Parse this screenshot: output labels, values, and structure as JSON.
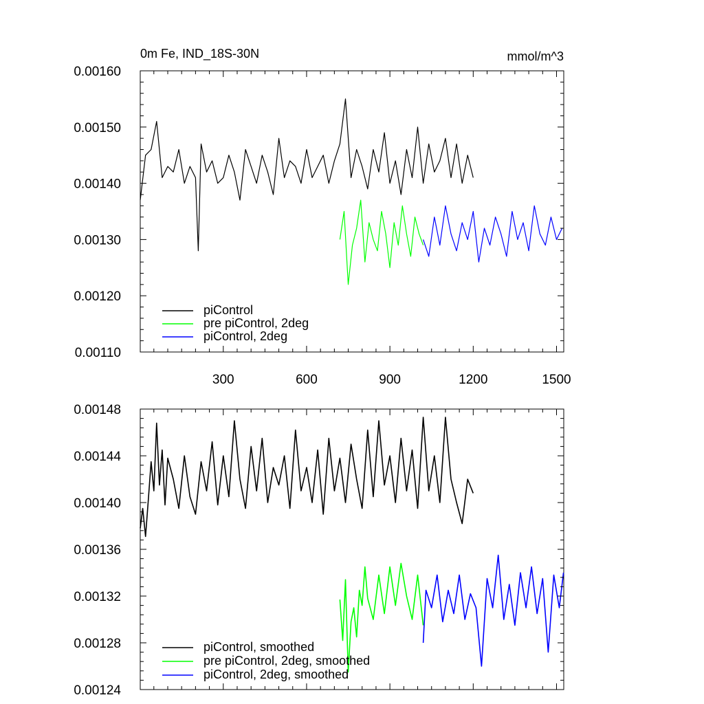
{
  "chart_data": [
    {
      "type": "line",
      "title": "0m Fe, IND_18S-30N",
      "units": "mmol/m^3",
      "xlim": [
        1,
        1526
      ],
      "ylim": [
        0.0011,
        0.0016
      ],
      "xticks": [
        300,
        600,
        900,
        1200,
        1500
      ],
      "xtick_labels": [
        "300",
        "600",
        "900",
        "1200",
        "1500"
      ],
      "yticks": [
        0.0011,
        0.0012,
        0.0013,
        0.0014,
        0.0015,
        0.0016
      ],
      "ytick_labels": [
        "0.00110",
        "0.00120",
        "0.00130",
        "0.00140",
        "0.00150",
        "0.00160"
      ],
      "legend_position": "bottom-left",
      "grid": false,
      "series": [
        {
          "name": "piControl",
          "color": "#000000",
          "x_range": [
            1,
            1200
          ],
          "x": [
            1,
            20,
            40,
            60,
            80,
            100,
            120,
            140,
            160,
            180,
            200,
            210,
            220,
            240,
            260,
            280,
            300,
            320,
            340,
            360,
            380,
            400,
            420,
            440,
            460,
            480,
            500,
            520,
            540,
            560,
            580,
            600,
            620,
            640,
            660,
            680,
            700,
            720,
            740,
            760,
            780,
            800,
            820,
            840,
            860,
            880,
            900,
            920,
            940,
            960,
            980,
            1000,
            1020,
            1040,
            1060,
            1080,
            1100,
            1120,
            1140,
            1160,
            1180,
            1200
          ],
          "values": [
            0.00137,
            0.00145,
            0.00146,
            0.00151,
            0.00141,
            0.00143,
            0.00142,
            0.00146,
            0.0014,
            0.00143,
            0.00141,
            0.00128,
            0.00147,
            0.00142,
            0.00144,
            0.0014,
            0.00141,
            0.00145,
            0.00142,
            0.00137,
            0.00146,
            0.00143,
            0.0014,
            0.00145,
            0.00142,
            0.00138,
            0.00148,
            0.00141,
            0.00144,
            0.00143,
            0.0014,
            0.00146,
            0.00141,
            0.00143,
            0.00145,
            0.0014,
            0.00144,
            0.00147,
            0.00155,
            0.00141,
            0.00146,
            0.00143,
            0.00139,
            0.00146,
            0.00142,
            0.00149,
            0.0014,
            0.00144,
            0.00138,
            0.00146,
            0.00141,
            0.0015,
            0.0014,
            0.00147,
            0.00142,
            0.00144,
            0.00148,
            0.00141,
            0.00147,
            0.0014,
            0.00145,
            0.00141
          ]
        },
        {
          "name": "pre piControl, 2deg",
          "color": "#00ff00",
          "x_range": [
            720,
            1020
          ],
          "x": [
            720,
            735,
            750,
            765,
            780,
            795,
            810,
            825,
            840,
            855,
            870,
            885,
            900,
            915,
            930,
            945,
            960,
            975,
            990,
            1005,
            1020
          ],
          "values": [
            0.0013,
            0.00135,
            0.00122,
            0.00129,
            0.00132,
            0.00137,
            0.00126,
            0.00133,
            0.0013,
            0.00128,
            0.00135,
            0.00131,
            0.00125,
            0.00133,
            0.00129,
            0.00136,
            0.00131,
            0.00127,
            0.00134,
            0.00131,
            0.00129
          ]
        },
        {
          "name": "piControl, 2deg",
          "color": "#0000ff",
          "x_range": [
            1020,
            1526
          ],
          "x": [
            1020,
            1040,
            1060,
            1080,
            1100,
            1120,
            1140,
            1160,
            1180,
            1200,
            1220,
            1240,
            1260,
            1280,
            1300,
            1320,
            1340,
            1360,
            1380,
            1400,
            1420,
            1440,
            1460,
            1480,
            1500,
            1520
          ],
          "values": [
            0.0013,
            0.00127,
            0.00134,
            0.00129,
            0.00136,
            0.00131,
            0.00128,
            0.00133,
            0.0013,
            0.00135,
            0.00126,
            0.00132,
            0.00129,
            0.00134,
            0.00131,
            0.00127,
            0.00135,
            0.0013,
            0.00133,
            0.00128,
            0.00136,
            0.00131,
            0.00129,
            0.00134,
            0.0013,
            0.00132
          ]
        }
      ]
    },
    {
      "type": "line",
      "xlim": [
        1,
        1526
      ],
      "ylim": [
        0.00124,
        0.00148
      ],
      "xticks": [
        300,
        600,
        900,
        1200,
        1500
      ],
      "yticks": [
        0.00124,
        0.00128,
        0.00132,
        0.00136,
        0.0014,
        0.00144,
        0.00148
      ],
      "ytick_labels": [
        "0.00124",
        "0.00128",
        "0.00132",
        "0.00136",
        "0.00140",
        "0.00144",
        "0.00148"
      ],
      "legend_position": "bottom-left",
      "grid": false,
      "series": [
        {
          "name": "piControl, smoothed",
          "color": "#000000",
          "x": [
            1,
            10,
            20,
            30,
            40,
            50,
            60,
            70,
            80,
            90,
            100,
            120,
            140,
            160,
            180,
            200,
            220,
            240,
            260,
            280,
            300,
            320,
            340,
            360,
            380,
            400,
            420,
            440,
            460,
            480,
            500,
            520,
            540,
            560,
            580,
            600,
            620,
            640,
            660,
            680,
            700,
            720,
            740,
            760,
            780,
            800,
            820,
            840,
            860,
            880,
            900,
            920,
            940,
            960,
            980,
            1000,
            1020,
            1040,
            1060,
            1080,
            1100,
            1120,
            1140,
            1160,
            1180,
            1200
          ],
          "values": [
            0.001378,
            0.001395,
            0.001371,
            0.001402,
            0.001435,
            0.00141,
            0.001468,
            0.001415,
            0.001445,
            0.001398,
            0.001438,
            0.00142,
            0.001395,
            0.00144,
            0.001405,
            0.00139,
            0.001435,
            0.00141,
            0.001452,
            0.001398,
            0.00144,
            0.001405,
            0.00147,
            0.00142,
            0.001395,
            0.001448,
            0.00141,
            0.001455,
            0.0014,
            0.00143,
            0.001415,
            0.00144,
            0.001395,
            0.001462,
            0.00141,
            0.00143,
            0.0014,
            0.001445,
            0.00139,
            0.001455,
            0.00141,
            0.001438,
            0.0014,
            0.00145,
            0.00142,
            0.001395,
            0.001462,
            0.001405,
            0.00147,
            0.001415,
            0.00144,
            0.0014,
            0.001455,
            0.00141,
            0.001445,
            0.001395,
            0.001473,
            0.00141,
            0.00144,
            0.0014,
            0.001473,
            0.00142,
            0.0014,
            0.001382,
            0.00142,
            0.001408
          ]
        },
        {
          "name": "pre piControl, 2deg, smoothed",
          "color": "#00ff00",
          "x": [
            720,
            730,
            740,
            750,
            760,
            770,
            780,
            790,
            800,
            810,
            820,
            840,
            860,
            880,
            900,
            920,
            940,
            960,
            980,
            1000,
            1020
          ],
          "values": [
            0.001317,
            0.001282,
            0.001334,
            0.001255,
            0.001298,
            0.00131,
            0.001285,
            0.001325,
            0.001312,
            0.001345,
            0.001318,
            0.0013,
            0.001338,
            0.001305,
            0.001345,
            0.001312,
            0.001348,
            0.00132,
            0.0013,
            0.001338,
            0.001295
          ]
        },
        {
          "name": "piControl, 2deg, smoothed",
          "color": "#0000ff",
          "x": [
            1020,
            1030,
            1050,
            1070,
            1090,
            1110,
            1130,
            1150,
            1170,
            1190,
            1210,
            1230,
            1250,
            1270,
            1290,
            1310,
            1330,
            1350,
            1370,
            1390,
            1410,
            1430,
            1450,
            1470,
            1490,
            1510,
            1525
          ],
          "values": [
            0.00128,
            0.001325,
            0.00131,
            0.001338,
            0.001298,
            0.001325,
            0.001305,
            0.001338,
            0.0013,
            0.001322,
            0.00131,
            0.00126,
            0.001335,
            0.00131,
            0.001355,
            0.0013,
            0.00133,
            0.001295,
            0.00134,
            0.00131,
            0.001345,
            0.001305,
            0.001335,
            0.001272,
            0.001338,
            0.00131,
            0.00134
          ]
        }
      ]
    }
  ]
}
